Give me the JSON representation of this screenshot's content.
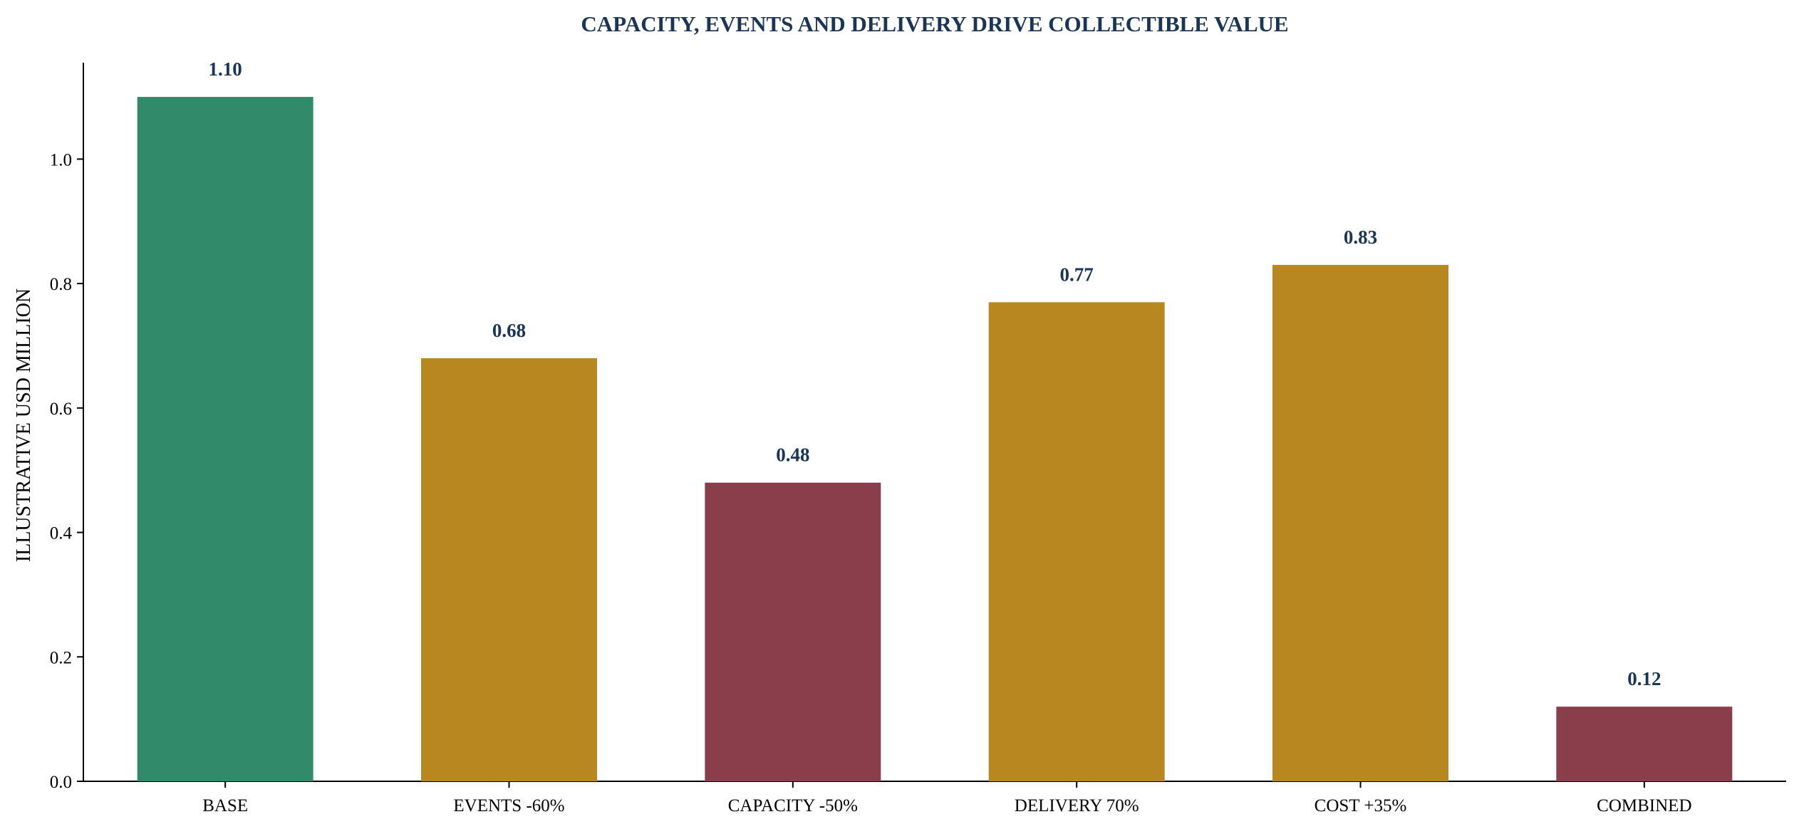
{
  "chart_data": {
    "type": "bar",
    "title": "CAPACITY, EVENTS AND DELIVERY DRIVE COLLECTIBLE VALUE",
    "xlabel": "",
    "ylabel": "ILLUSTRATIVE USD MILLION",
    "categories": [
      "BASE",
      "EVENTS -60%",
      "CAPACITY -50%",
      "DELIVERY 70%",
      "COST +35%",
      "COMBINED"
    ],
    "values": [
      1.1,
      0.68,
      0.48,
      0.77,
      0.83,
      0.12
    ],
    "value_labels": [
      "1.10",
      "0.68",
      "0.48",
      "0.77",
      "0.83",
      "0.12"
    ],
    "bar_colors": [
      "#318A6A",
      "#B88720",
      "#8A3E4C",
      "#B88720",
      "#B88720",
      "#8A3E4C"
    ],
    "yticks": [
      0.0,
      0.2,
      0.4,
      0.6,
      0.8,
      1.0
    ],
    "ytick_labels": [
      "0.0",
      "0.2",
      "0.4",
      "0.6",
      "0.8",
      "1.0"
    ],
    "ylim": [
      0,
      1.155
    ],
    "grid": false,
    "legend": "none",
    "title_color": "#1B3556",
    "label_color": "#1B3556",
    "axis_color": "#000000"
  }
}
